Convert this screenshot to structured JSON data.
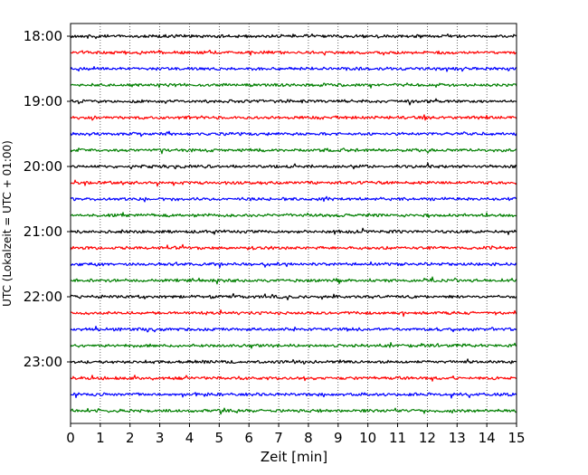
{
  "chart_data": {
    "type": "line",
    "title": "",
    "xlabel": "Zeit  [min]",
    "ylabel": "UTC (Lokalzeit = UTC + 01:00)",
    "xlim": [
      0,
      15
    ],
    "x_ticks": [
      "0",
      "1",
      "2",
      "3",
      "4",
      "5",
      "6",
      "7",
      "8",
      "9",
      "10",
      "11",
      "12",
      "13",
      "14",
      "15"
    ],
    "y_tick_labels": [
      "18:00",
      "19:00",
      "20:00",
      "21:00",
      "22:00",
      "23:00"
    ],
    "y_tick_rows": [
      0,
      4,
      8,
      12,
      16,
      20
    ],
    "grid": "vertical dotted",
    "trace_colors": [
      "#000000",
      "#ff0000",
      "#0000ff",
      "#007f00"
    ],
    "traces": [
      {
        "start": "18:00",
        "color": "#000000"
      },
      {
        "start": "18:15",
        "color": "#ff0000"
      },
      {
        "start": "18:30",
        "color": "#0000ff"
      },
      {
        "start": "18:45",
        "color": "#007f00"
      },
      {
        "start": "19:00",
        "color": "#000000"
      },
      {
        "start": "19:15",
        "color": "#ff0000"
      },
      {
        "start": "19:30",
        "color": "#0000ff"
      },
      {
        "start": "19:45",
        "color": "#007f00"
      },
      {
        "start": "20:00",
        "color": "#000000"
      },
      {
        "start": "20:15",
        "color": "#ff0000"
      },
      {
        "start": "20:30",
        "color": "#0000ff"
      },
      {
        "start": "20:45",
        "color": "#007f00"
      },
      {
        "start": "21:00",
        "color": "#000000"
      },
      {
        "start": "21:15",
        "color": "#ff0000"
      },
      {
        "start": "21:30",
        "color": "#0000ff"
      },
      {
        "start": "21:45",
        "color": "#007f00"
      },
      {
        "start": "22:00",
        "color": "#000000"
      },
      {
        "start": "22:15",
        "color": "#ff0000"
      },
      {
        "start": "22:30",
        "color": "#0000ff"
      },
      {
        "start": "22:45",
        "color": "#007f00"
      },
      {
        "start": "23:00",
        "color": "#000000"
      },
      {
        "start": "23:15",
        "color": "#ff0000"
      },
      {
        "start": "23:30",
        "color": "#0000ff"
      },
      {
        "start": "23:45",
        "color": "#007f00"
      }
    ]
  }
}
